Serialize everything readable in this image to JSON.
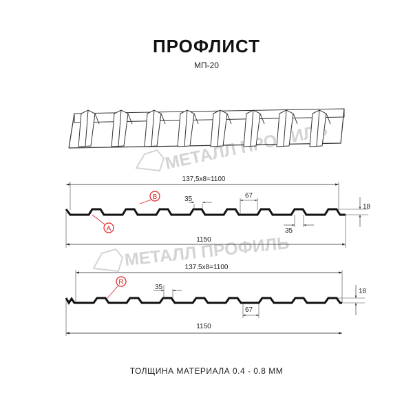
{
  "title": "ПРОФЛИСТ",
  "model": "МП-20",
  "footer": "ТОЛЩИНА МАТЕРИАЛА 0.4 - 0.8 ММ",
  "watermark": "МЕТАЛЛ ПРОФИЛЬ",
  "colors": {
    "profile": "#111111",
    "marker": "#e02020",
    "watermark": "#d4d4d4"
  },
  "profile_a": {
    "pitch_label": "137,5x8=1100",
    "width_label": "1150",
    "crest_label": "35",
    "crest_bottom_label": "35",
    "top_label": "67",
    "height_label": "18",
    "markers": [
      "B",
      "A"
    ]
  },
  "profile_b": {
    "pitch_label": "137.5x8=1100",
    "width_label": "1150",
    "crest_label": "35",
    "bottom_label": "67",
    "height_label": "18",
    "markers": [
      "R"
    ]
  }
}
